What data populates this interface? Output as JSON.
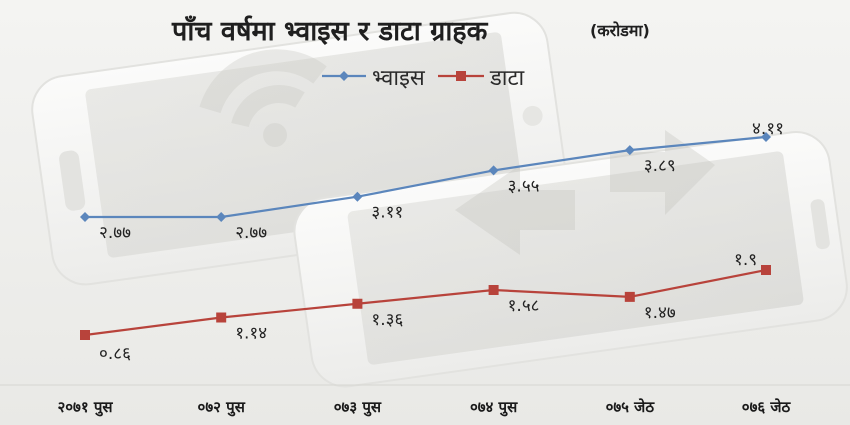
{
  "chart_data": {
    "type": "line",
    "title": "पाँच वर्षमा भ्वाइस र डाटा ग्राहक",
    "subtitle": "(करोडमा)",
    "categories": [
      "२०७१ पुस",
      "०७२ पुस",
      "०७३ पुस",
      "०७४ पुस",
      "०७५ जेठ",
      "०७६ जेठ"
    ],
    "series": [
      {
        "name": "भ्वाइस",
        "color": "#5b86bc",
        "values": [
          2.77,
          2.77,
          3.11,
          3.55,
          3.89,
          4.11
        ],
        "labels": [
          "२.७७",
          "२.७७",
          "३.११",
          "३.५५",
          "३.८९",
          "४.११"
        ]
      },
      {
        "name": "डाटा",
        "color": "#b8433b",
        "values": [
          0.86,
          1.14,
          1.36,
          1.58,
          1.47,
          1.9
        ],
        "labels": [
          "०.८६",
          "१.१४",
          "१.३६",
          "१.५८",
          "१.४७",
          "१.९"
        ]
      }
    ],
    "legend_position": "top-center",
    "grid": false
  }
}
